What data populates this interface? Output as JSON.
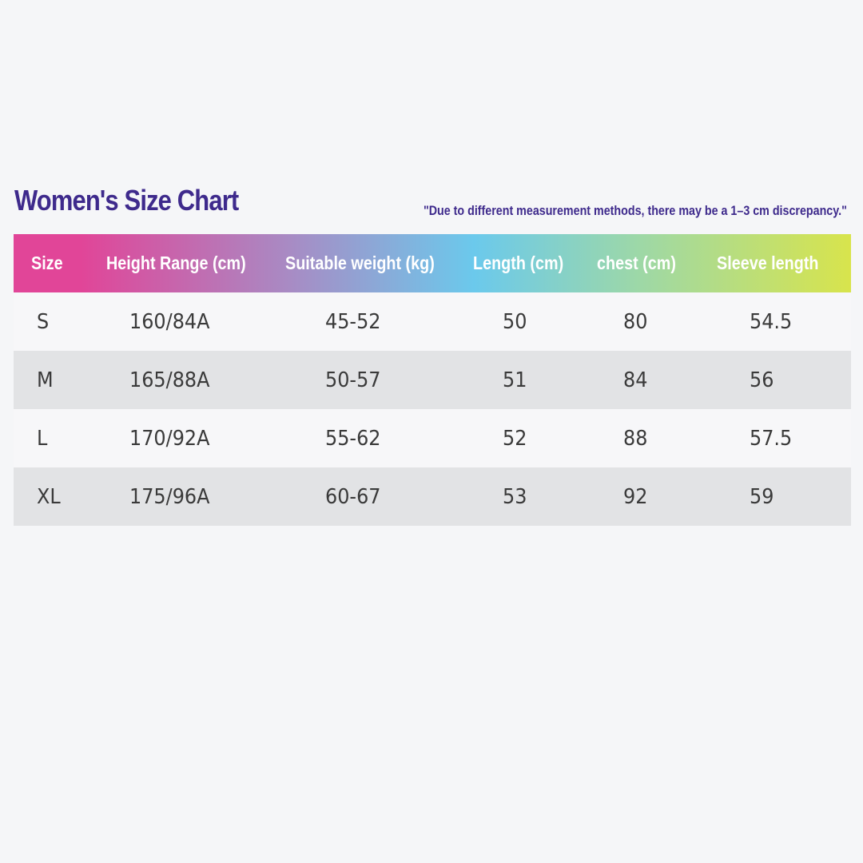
{
  "title": "Women's Size Chart",
  "note": "\"Due to different measurement methods, there may be a 1–3 cm discrepancy.\"",
  "colors": {
    "title": "#3e2a8c",
    "gradient_start": "#e14598",
    "gradient_mid1": "#a88bc4",
    "gradient_mid2": "#6bc9ec",
    "gradient_mid3": "#9ed8a6",
    "gradient_end": "#d8e44c",
    "row_light": "#f7f7f9",
    "row_dark": "#e2e3e5"
  },
  "table": {
    "headers": [
      "Size",
      "Height Range (cm)",
      "Suitable weight (kg)",
      "Length (cm)",
      "chest (cm)",
      "Sleeve length"
    ],
    "rows": [
      [
        "S",
        "160/84A",
        "45-52",
        "50",
        "80",
        "54.5"
      ],
      [
        "M",
        "165/88A",
        "50-57",
        "51",
        "84",
        "56"
      ],
      [
        "L",
        "170/92A",
        "55-62",
        "52",
        "88",
        "57.5"
      ],
      [
        "XL",
        "175/96A",
        "60-67",
        "53",
        "92",
        "59"
      ]
    ]
  }
}
